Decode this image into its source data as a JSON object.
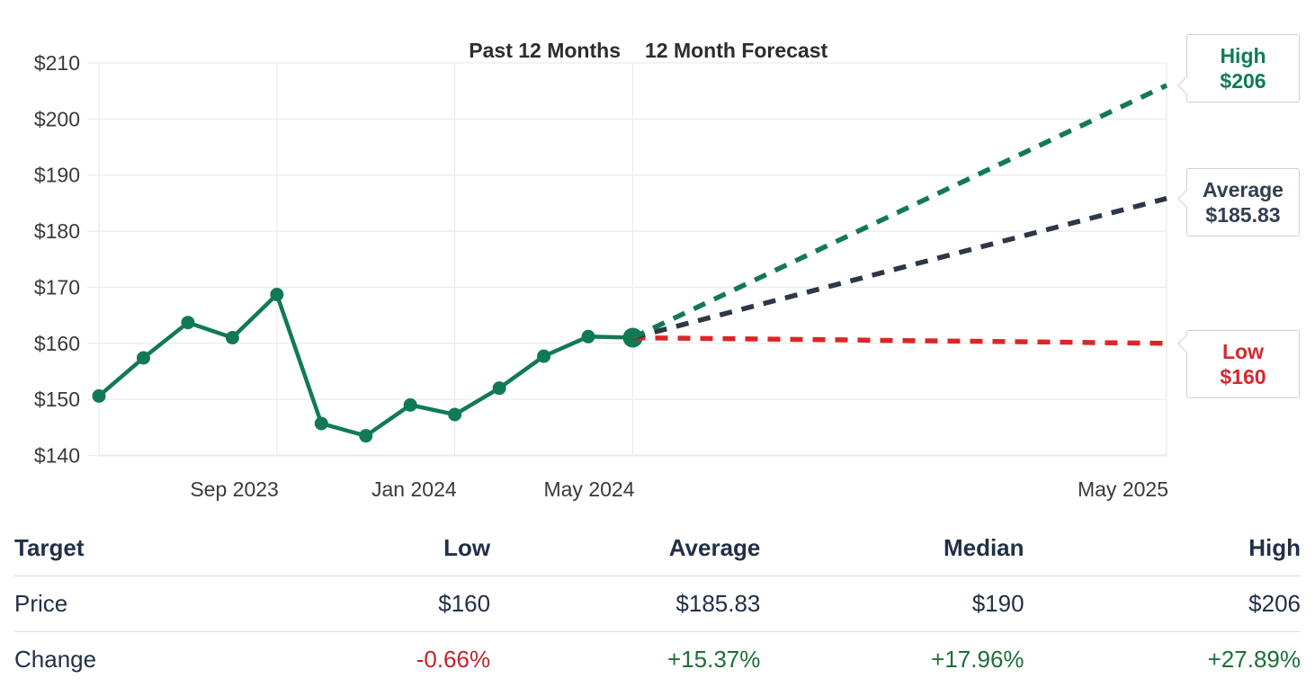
{
  "colors": {
    "green": "#117a54",
    "navy": "#2e3748",
    "red": "#dc2626",
    "callout_green": "#0f7c52",
    "callout_navy": "#333e52",
    "callout_red": "#d7282e",
    "positive": "#1c6f39",
    "negative": "#c3242c",
    "table_text": "#223046",
    "axis_text": "#3a3a3a",
    "gridline": "#ececec",
    "axis_line": "#c9c9c9"
  },
  "chart_data": {
    "type": "line",
    "titles": {
      "past": "Past 12 Months",
      "forecast": "12 Month Forecast"
    },
    "ylim": [
      140,
      210
    ],
    "y_ticks": [
      210,
      200,
      190,
      180,
      170,
      160,
      150,
      140
    ],
    "y_tick_prefix": "$",
    "x_total_months": 24,
    "x_ticks": [
      {
        "label": "Sep 2023",
        "month": 4
      },
      {
        "label": "Jan 2024",
        "month": 8
      },
      {
        "label": "May 2024",
        "month": 12
      },
      {
        "label": "May 2025",
        "month": 24
      }
    ],
    "grid": true,
    "legend_position": "none",
    "historical": {
      "name": "price-history",
      "color": "#117a54",
      "points": [
        {
          "month": "May 2023",
          "value": 150.6
        },
        {
          "month": "Jun 2023",
          "value": 157.4
        },
        {
          "month": "Jul 2023",
          "value": 163.7
        },
        {
          "month": "Aug 2023",
          "value": 161.0
        },
        {
          "month": "Sep 2023",
          "value": 168.7
        },
        {
          "month": "Oct 2023",
          "value": 145.7
        },
        {
          "month": "Nov 2023",
          "value": 143.5
        },
        {
          "month": "Dec 2023",
          "value": 149.0
        },
        {
          "month": "Jan 2024",
          "value": 147.3
        },
        {
          "month": "Feb 2024",
          "value": 152.0
        },
        {
          "month": "Mar 2024",
          "value": 157.7
        },
        {
          "month": "Apr 2024",
          "value": 161.2
        },
        {
          "month": "May 2024",
          "value": 161.0
        }
      ]
    },
    "forecast_start": {
      "month": "May 2024",
      "value": 161.0
    },
    "forecast_lines": [
      {
        "name": "High",
        "end_month": "May 2025",
        "end_value": 206,
        "color": "#117a54"
      },
      {
        "name": "Average",
        "end_month": "May 2025",
        "end_value": 185.83,
        "color": "#2e3748"
      },
      {
        "name": "Low",
        "end_month": "May 2025",
        "end_value": 160,
        "color": "#dc2626"
      }
    ]
  },
  "callouts": [
    {
      "label": "High",
      "value": "$206",
      "tone": "callout_green"
    },
    {
      "label": "Average",
      "value": "$185.83",
      "tone": "callout_navy"
    },
    {
      "label": "Low",
      "value": "$160",
      "tone": "callout_red"
    }
  ],
  "table": {
    "headers": [
      "Target",
      "Low",
      "Average",
      "Median",
      "High"
    ],
    "price_row": {
      "label": "Price",
      "values": [
        "$160",
        "$185.83",
        "$190",
        "$206"
      ]
    },
    "change_row": {
      "label": "Change",
      "values": [
        "-0.66%",
        "+15.37%",
        "+17.96%",
        "+27.89%"
      ],
      "tones": [
        "negative",
        "positive",
        "positive",
        "positive"
      ]
    }
  }
}
